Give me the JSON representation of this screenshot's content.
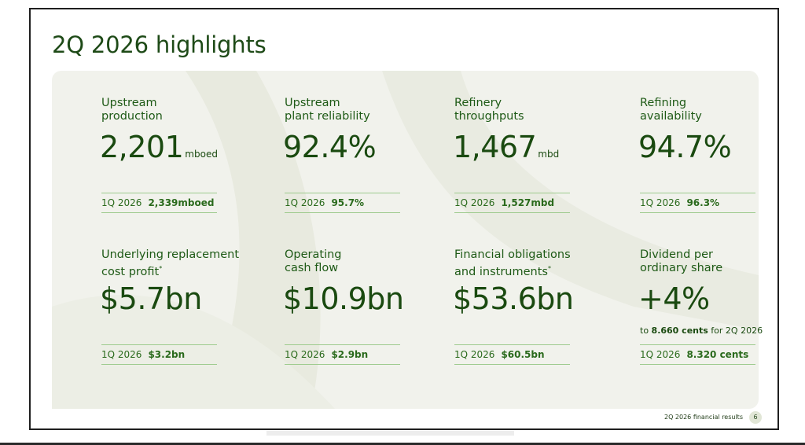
{
  "slide": {
    "title": "2Q 2026 highlights",
    "footer": "2Q 2026 financial results",
    "page_number": "6"
  },
  "cards": [
    {
      "label_line1": "Upstream",
      "label_line2": "production",
      "label_mark": "",
      "value": "2,201",
      "unit": "mboed",
      "subnote_bold": "",
      "subnote_rest": "",
      "compare_label": "1Q 2026",
      "compare_value": "2,339mboed"
    },
    {
      "label_line1": "Upstream",
      "label_line2": "plant reliability",
      "label_mark": "",
      "value": "92.4%",
      "unit": "",
      "subnote_bold": "",
      "subnote_rest": "",
      "compare_label": "1Q 2026",
      "compare_value": "95.7%"
    },
    {
      "label_line1": "Refinery",
      "label_line2": "throughputs",
      "label_mark": "",
      "value": "1,467",
      "unit": "mbd",
      "subnote_bold": "",
      "subnote_rest": "",
      "compare_label": "1Q 2026",
      "compare_value": "1,527mbd"
    },
    {
      "label_line1": "Refining",
      "label_line2": "availability",
      "label_mark": "",
      "value": "94.7%",
      "unit": "",
      "subnote_bold": "",
      "subnote_rest": "",
      "compare_label": "1Q 2026",
      "compare_value": "96.3%"
    },
    {
      "label_line1": "Underlying replacement",
      "label_line2": "cost profit",
      "label_mark": "*",
      "value": "$5.7bn",
      "unit": "",
      "subnote_bold": "",
      "subnote_rest": "",
      "compare_label": "1Q 2026",
      "compare_value": "$3.2bn"
    },
    {
      "label_line1": "Operating",
      "label_line2": "cash flow",
      "label_mark": "",
      "value": "$10.9bn",
      "unit": "",
      "subnote_bold": "",
      "subnote_rest": "",
      "compare_label": "1Q 2026",
      "compare_value": "$2.9bn"
    },
    {
      "label_line1": "Financial obligations",
      "label_line2": "and instruments",
      "label_mark": "*",
      "value": "$53.6bn",
      "unit": "",
      "subnote_bold": "",
      "subnote_rest": "",
      "compare_label": "1Q 2026",
      "compare_value": "$60.5bn"
    },
    {
      "label_line1": "Dividend per",
      "label_line2": "ordinary share",
      "label_mark": "",
      "value": "+4%",
      "unit": "",
      "subnote_bold": "8.660 cents",
      "subnote_rest": " for 2Q 2026",
      "subnote_prefix": "to ",
      "compare_label": "1Q 2026",
      "compare_value": "8.320 cents"
    }
  ],
  "colors": {
    "title_green": "#1e4a17",
    "value_green": "#1a4a10",
    "rule_green": "#9ecb8e",
    "panel_bg": "#f1f2ec"
  }
}
